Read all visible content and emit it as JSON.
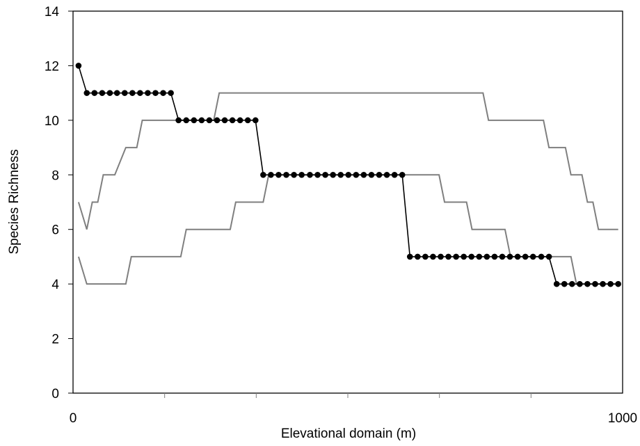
{
  "chart_data": {
    "type": "line",
    "title": "",
    "xlabel": "Elevational domain (m)",
    "ylabel": "Species Richness",
    "xlim": [
      0,
      1000
    ],
    "ylim": [
      0,
      14
    ],
    "x_tick_labels": [
      {
        "value": 0,
        "label": "0"
      },
      {
        "value": 1000,
        "label": "1000"
      }
    ],
    "x_minor_ticks": [
      166.67,
      333.33,
      500,
      666.67,
      833.33
    ],
    "y_ticks": [
      0,
      2,
      4,
      6,
      8,
      10,
      12,
      14
    ],
    "grid": false,
    "legend": "none",
    "colors": {
      "observed": "#000000",
      "envelope": "#7f7f7f"
    },
    "series": [
      {
        "style": "observed-markers",
        "x": [
          10,
          25,
          39,
          53,
          67,
          80,
          94,
          108,
          122,
          136,
          150,
          164,
          178,
          192,
          206,
          220,
          234,
          248,
          262,
          276,
          290,
          304,
          318,
          332,
          346,
          360,
          374,
          388,
          402,
          416,
          431,
          445,
          459,
          473,
          487,
          501,
          515,
          529,
          543,
          557,
          571,
          585,
          599,
          613,
          627,
          641,
          655,
          669,
          683,
          697,
          711,
          725,
          739,
          753,
          767,
          781,
          795,
          809,
          823,
          837,
          852,
          866,
          880,
          894,
          908,
          922,
          936,
          950,
          964,
          978,
          992
        ],
        "values": [
          12,
          11,
          11,
          11,
          11,
          11,
          11,
          11,
          11,
          11,
          11,
          11,
          11,
          10,
          10,
          10,
          10,
          10,
          10,
          10,
          10,
          10,
          10,
          10,
          8,
          8,
          8,
          8,
          8,
          8,
          8,
          8,
          8,
          8,
          8,
          8,
          8,
          8,
          8,
          8,
          8,
          8,
          8,
          5,
          5,
          5,
          5,
          5,
          5,
          5,
          5,
          5,
          5,
          5,
          5,
          5,
          5,
          5,
          5,
          5,
          5,
          5,
          4,
          4,
          4,
          4,
          4,
          4,
          4,
          4,
          4
        ]
      },
      {
        "style": "upper-envelope",
        "x": [
          10,
          25,
          35,
          45,
          55,
          65,
          76,
          96,
          106,
          116,
          126,
          136,
          146,
          156,
          166,
          176,
          186,
          196,
          206,
          216,
          226,
          236,
          246,
          256,
          266,
          276,
          286,
          296,
          306,
          316,
          326,
          336,
          346,
          356,
          366,
          376,
          386,
          396,
          406,
          416,
          426,
          436,
          446,
          456,
          466,
          476,
          486,
          496,
          506,
          516,
          526,
          536,
          546,
          556,
          566,
          576,
          586,
          596,
          606,
          616,
          626,
          636,
          646,
          656,
          666,
          676,
          686,
          696,
          706,
          716,
          726,
          736,
          746,
          756,
          766,
          776,
          786,
          796,
          806,
          816,
          826,
          836,
          846,
          856,
          866,
          876,
          886,
          896,
          906,
          916,
          926,
          936,
          946,
          956,
          966,
          976,
          992
        ],
        "values": [
          7,
          6,
          7,
          7,
          8,
          8,
          8,
          9,
          9,
          9,
          10,
          10,
          10,
          10,
          10,
          10,
          10,
          10,
          10,
          10,
          10,
          10,
          10,
          10,
          11,
          11,
          11,
          11,
          11,
          11,
          11,
          11,
          11,
          11,
          11,
          11,
          11,
          11,
          11,
          11,
          11,
          11,
          11,
          11,
          11,
          11,
          11,
          11,
          11,
          11,
          11,
          11,
          11,
          11,
          11,
          11,
          11,
          11,
          11,
          11,
          11,
          11,
          11,
          11,
          11,
          11,
          11,
          11,
          11,
          11,
          11,
          11,
          11,
          10,
          10,
          10,
          10,
          10,
          10,
          10,
          10,
          10,
          10,
          10,
          9,
          9,
          9,
          9,
          8,
          8,
          8,
          7,
          7,
          6,
          6,
          6,
          6
        ]
      },
      {
        "style": "lower-envelope",
        "x": [
          10,
          25,
          35,
          45,
          55,
          65,
          76,
          86,
          96,
          106,
          116,
          126,
          136,
          146,
          156,
          166,
          176,
          186,
          196,
          206,
          216,
          226,
          236,
          246,
          256,
          266,
          276,
          286,
          296,
          306,
          316,
          326,
          336,
          346,
          356,
          366,
          376,
          386,
          396,
          406,
          416,
          426,
          436,
          446,
          456,
          466,
          476,
          486,
          496,
          506,
          516,
          526,
          536,
          546,
          556,
          566,
          576,
          586,
          596,
          606,
          616,
          626,
          636,
          646,
          656,
          666,
          676,
          686,
          696,
          706,
          716,
          726,
          736,
          746,
          756,
          766,
          776,
          786,
          796,
          806,
          816,
          826,
          836,
          846,
          856,
          866,
          876,
          886,
          896,
          906,
          916,
          926,
          936,
          946,
          956,
          966,
          976,
          992
        ],
        "values": [
          5,
          4,
          4,
          4,
          4,
          4,
          4,
          4,
          4,
          5,
          5,
          5,
          5,
          5,
          5,
          5,
          5,
          5,
          5,
          6,
          6,
          6,
          6,
          6,
          6,
          6,
          6,
          6,
          7,
          7,
          7,
          7,
          7,
          7,
          8,
          8,
          8,
          8,
          8,
          8,
          8,
          8,
          8,
          8,
          8,
          8,
          8,
          8,
          8,
          8,
          8,
          8,
          8,
          8,
          8,
          8,
          8,
          8,
          8,
          8,
          8,
          8,
          8,
          8,
          8,
          8,
          7,
          7,
          7,
          7,
          7,
          6,
          6,
          6,
          6,
          6,
          6,
          6,
          5,
          5,
          5,
          5,
          5,
          5,
          5,
          5,
          5,
          5,
          5,
          5,
          4,
          4,
          4,
          4,
          4,
          4,
          4,
          4
        ]
      }
    ]
  }
}
